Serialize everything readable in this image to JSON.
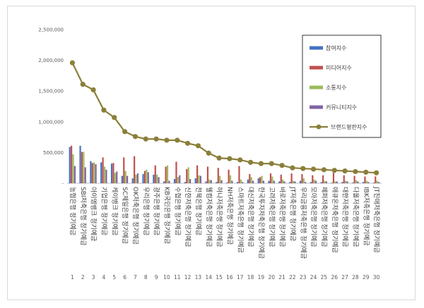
{
  "chart_data": {
    "type": "bar",
    "y_ticks": [
      "2,500,000",
      "2,000,000",
      "1,500,000",
      "1,000,000",
      "500,000",
      "-"
    ],
    "ylim": [
      0,
      2500000
    ],
    "legend_position": "right-top",
    "ranks": [
      "1",
      "2",
      "3",
      "4",
      "5",
      "6",
      "7",
      "8",
      "9",
      "10",
      "11",
      "12",
      "13",
      "14",
      "15",
      "16",
      "17",
      "18",
      "19",
      "20",
      "21",
      "22",
      "23",
      "24",
      "25",
      "26",
      "27",
      "28",
      "29",
      "30"
    ],
    "categories": [
      "농협은행 정기예금",
      "SBI저축은행 정기예금",
      "아이엠뱅크 정기예금",
      "기업은행 정기예금",
      "케이뱅크 정기예금",
      "SC제일은행 정기예금",
      "OK저축은행 정기예금",
      "우리은행 정기예금",
      "광주은행 정기예금",
      "KB국민은행 정기예금",
      "수협은행 정기예금",
      "신한저축은행 정기예금",
      "전북은행 정기예금",
      "웰컴저축은행 정기예금",
      "하나저축은행 정기예금",
      "NH저축은행 정기예금",
      "스마트저축은행 정기예금",
      "대신저축은행 정기예금",
      "한국투자저축은행 정기예금",
      "고려저축은행 정기예금",
      "바로저축은행 정기예금",
      "JT저축은행 정기예금",
      "우리금융저축은행 정기예금",
      "모아저축은행 정기예금",
      "페퍼저축은행 정기예금",
      "애큐온저축은행 정기예금",
      "대한저축은행 정기예금",
      "다올저축은행 정기예금",
      "IBK저축은행 정기예금",
      "JT친애저축은행 정기예금"
    ],
    "series": [
      {
        "name": "참여지수",
        "color": "#4472c4",
        "values": [
          590000,
          610000,
          360000,
          340000,
          320000,
          120000,
          80000,
          150000,
          140000,
          30000,
          70000,
          20000,
          80000,
          30000,
          20000,
          10000,
          20000,
          60000,
          80000,
          40000,
          30000,
          20000,
          40000,
          20000,
          20000,
          10000,
          20000,
          10000,
          20000,
          10000
        ]
      },
      {
        "name": "미디어지수",
        "color": "#c0504d",
        "values": [
          610000,
          510000,
          330000,
          420000,
          330000,
          420000,
          440000,
          200000,
          290000,
          270000,
          350000,
          230000,
          290000,
          270000,
          250000,
          220000,
          280000,
          150000,
          100000,
          160000,
          140000,
          160000,
          150000,
          130000,
          130000,
          170000,
          130000,
          120000,
          110000,
          110000
        ]
      },
      {
        "name": "소통지수",
        "color": "#9bbb59",
        "values": [
          470000,
          510000,
          340000,
          270000,
          170000,
          200000,
          140000,
          220000,
          140000,
          290000,
          100000,
          260000,
          130000,
          60000,
          120000,
          130000,
          60000,
          100000,
          120000,
          110000,
          60000,
          40000,
          80000,
          60000,
          40000,
          30000,
          40000,
          50000,
          40000,
          40000
        ]
      },
      {
        "name": "커뮤니티지수",
        "color": "#8064a2",
        "values": [
          280000,
          260000,
          310000,
          220000,
          190000,
          120000,
          160000,
          180000,
          100000,
          40000,
          130000,
          70000,
          120000,
          50000,
          50000,
          40000,
          20000,
          40000,
          40000,
          40000,
          30000,
          30000,
          20000,
          40000,
          30000,
          30000,
          30000,
          30000,
          20000,
          20000
        ]
      }
    ],
    "line_series": {
      "name": "브랜드평판지수",
      "color": "#8b7f3a",
      "values": [
        1960000,
        1610000,
        1520000,
        1190000,
        1070000,
        840000,
        760000,
        720000,
        720000,
        700000,
        700000,
        650000,
        610000,
        490000,
        410000,
        400000,
        380000,
        340000,
        320000,
        320000,
        290000,
        250000,
        240000,
        230000,
        220000,
        210000,
        200000,
        190000,
        180000,
        170000
      ]
    }
  }
}
